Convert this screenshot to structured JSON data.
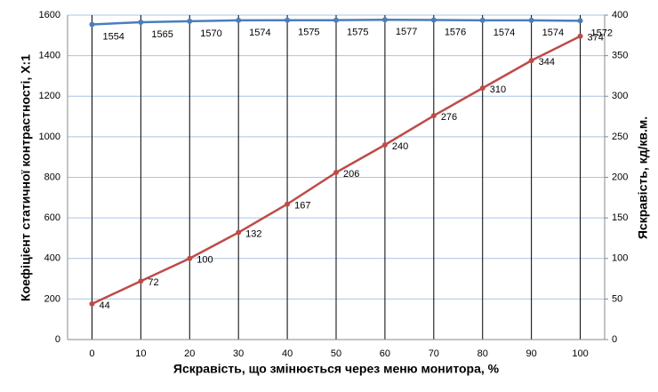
{
  "chart_data": {
    "type": "line",
    "x_label": "Яскравість, що змінюється через меню монитора, %",
    "y_label": "Коефіцієнт статичної контрастності, X:1",
    "y2_label": "Яскравість, кд/кв.м.",
    "x": [
      0,
      10,
      20,
      30,
      40,
      50,
      60,
      70,
      80,
      90,
      100
    ],
    "xlim": [
      -5,
      105
    ],
    "xticks": [
      0,
      10,
      20,
      30,
      40,
      50,
      60,
      70,
      80,
      90,
      100
    ],
    "ylim": [
      0,
      1600
    ],
    "yticks": [
      0,
      200,
      400,
      600,
      800,
      1000,
      1200,
      1400,
      1600
    ],
    "y2lim": [
      0,
      400
    ],
    "y2ticks": [
      0,
      50,
      100,
      150,
      200,
      250,
      300,
      350,
      400
    ],
    "xgrid": true,
    "ygrid": true,
    "series": [
      {
        "name": "Коефіцієнт статичної контрастності",
        "color": "#4a7ebb",
        "axis": "y",
        "values": [
          1554,
          1565,
          1570,
          1574,
          1575,
          1575,
          1577,
          1576,
          1574,
          1574,
          1572
        ]
      },
      {
        "name": "Яскравість",
        "color": "#be4b48",
        "axis": "y2",
        "values": [
          44,
          72,
          100,
          132,
          167,
          206,
          240,
          276,
          310,
          344,
          374
        ]
      }
    ]
  }
}
